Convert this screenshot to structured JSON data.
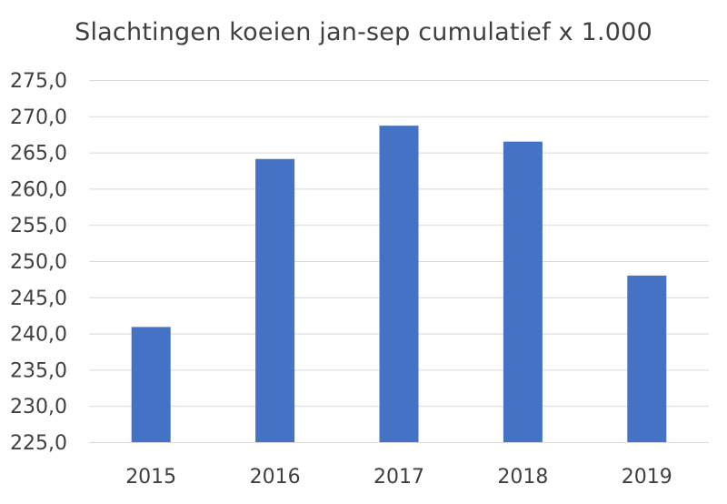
{
  "chart_data": {
    "type": "bar",
    "title": "Slachtingen koeien jan-sep cumulatief x 1.000",
    "xlabel": "",
    "ylabel": "",
    "categories": [
      "2015",
      "2016",
      "2017",
      "2018",
      "2019"
    ],
    "values": [
      240.9,
      264.1,
      268.7,
      266.5,
      248.0
    ],
    "ylim": [
      225,
      275
    ],
    "ytick_step": 5,
    "ytick_labels": [
      "225,0",
      "230,0",
      "235,0",
      "240,0",
      "245,0",
      "250,0",
      "255,0",
      "260,0",
      "265,0",
      "270,0",
      "275,0"
    ],
    "grid": true,
    "legend": "none",
    "colors": {
      "bar": "#4472C4",
      "grid": "#D9D9D9",
      "text": "#404040"
    }
  }
}
